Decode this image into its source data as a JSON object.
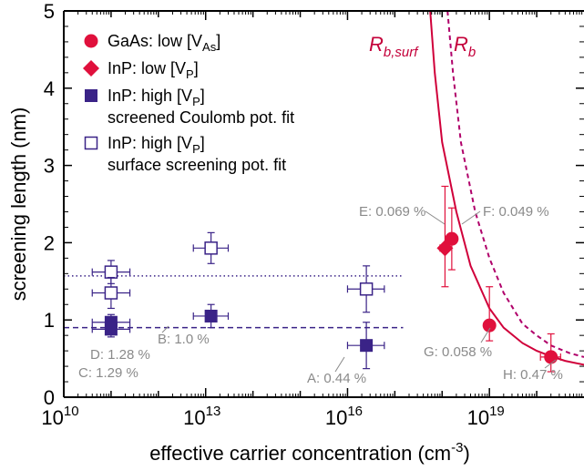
{
  "chart_data": {
    "type": "scatter",
    "xlabel": "effective carrier concentration (cm",
    "xlabel_sup": "-3",
    "xlabel_tail": ")",
    "ylabel": "screening length (nm)",
    "x_scale": "log",
    "xlim": [
      10000000000.0,
      1e+21
    ],
    "ylim": [
      0,
      5
    ],
    "x_ticks": [
      {
        "base": "10",
        "exp": "10",
        "value": 10000000000.0
      },
      {
        "base": "10",
        "exp": "13",
        "value": 10000000000000.0
      },
      {
        "base": "10",
        "exp": "16",
        "value": 1e+16
      },
      {
        "base": "10",
        "exp": "19",
        "value": 1e+19
      }
    ],
    "y_ticks": [
      "0",
      "1",
      "2",
      "3",
      "4",
      "5"
    ],
    "colors": {
      "red": "#e0103c",
      "purple": "#3a2387",
      "curve": "#d0003a",
      "curve_dash": "#b0006a",
      "annotation": "#8a8a8a"
    },
    "legend": [
      {
        "marker": "filled-circle",
        "color": "red",
        "text": "GaAs: low [V",
        "sub": "As",
        "tail": "]",
        "line2": ""
      },
      {
        "marker": "filled-diamond",
        "color": "red",
        "text": "InP: low [V",
        "sub": "P",
        "tail": "]",
        "line2": ""
      },
      {
        "marker": "filled-square",
        "color": "purple",
        "text": "InP: high [V",
        "sub": "P",
        "tail": "]",
        "line2": "screened Coulomb pot. fit"
      },
      {
        "marker": "open-square",
        "color": "purple",
        "text": "InP: high [V",
        "sub": "P",
        "tail": "]",
        "line2": "surface screening pot. fit"
      }
    ],
    "series": [
      {
        "marker": "filled-circle",
        "color": "red",
        "points": [
          {
            "x": 1.6e+18,
            "y": 2.05,
            "xerr": [
              1.3e+18,
              1.9e+18
            ],
            "yerr": [
              1.65,
              2.45
            ]
          },
          {
            "x": 1e+19,
            "y": 0.93,
            "xerr": [
              8e+18,
              1.2e+19
            ],
            "yerr": [
              0.73,
              1.43
            ]
          },
          {
            "x": 2e+20,
            "y": 0.52,
            "xerr": [
              1.2e+20,
              3.2e+20
            ],
            "yerr": [
              0.33,
              0.82
            ]
          }
        ]
      },
      {
        "marker": "filled-diamond",
        "color": "red",
        "points": [
          {
            "x": 1.15e+18,
            "y": 1.93,
            "xerr": [
              9e+17,
              1.4e+18
            ],
            "yerr": [
              1.43,
              2.73
            ]
          }
        ]
      },
      {
        "marker": "filled-square",
        "color": "purple",
        "points": [
          {
            "x": 100000000000.0,
            "y": 0.97,
            "xerr": [
              40000000000.0,
              250000000000.0
            ],
            "yerr": [
              0.87,
              1.07
            ]
          },
          {
            "x": 100000000000.0,
            "y": 0.88,
            "xerr": [
              40000000000.0,
              250000000000.0
            ],
            "yerr": [
              0.78,
              0.98
            ]
          },
          {
            "x": 13000000000000.0,
            "y": 1.05,
            "xerr": [
              5500000000000.0,
              30000000000000.0
            ],
            "yerr": [
              0.9,
              1.2
            ]
          },
          {
            "x": 2.5e+16,
            "y": 0.67,
            "xerr": [
              1e+16,
              6e+16
            ],
            "yerr": [
              0.37,
              0.97
            ]
          }
        ]
      },
      {
        "marker": "open-square",
        "color": "purple",
        "points": [
          {
            "x": 100000000000.0,
            "y": 1.62,
            "xerr": [
              40000000000.0,
              250000000000.0
            ],
            "yerr": [
              1.47,
              1.77
            ]
          },
          {
            "x": 100000000000.0,
            "y": 1.35,
            "xerr": [
              40000000000.0,
              250000000000.0
            ],
            "yerr": [
              1.15,
              1.55
            ]
          },
          {
            "x": 13000000000000.0,
            "y": 1.93,
            "xerr": [
              5500000000000.0,
              30000000000000.0
            ],
            "yerr": [
              1.73,
              2.13
            ]
          },
          {
            "x": 2.5e+16,
            "y": 1.4,
            "xerr": [
              1e+16,
              6e+16
            ],
            "yerr": [
              1.1,
              1.7
            ]
          }
        ]
      }
    ],
    "reference_lines": [
      {
        "style": "dotted",
        "y": 1.57,
        "x_from": 10000000000.0,
        "x_to": 1.5e+17,
        "color": "purple"
      },
      {
        "style": "dashed",
        "y": 0.9,
        "x_from": 10000000000.0,
        "x_to": 1.5e+17,
        "color": "purple"
      }
    ],
    "curves": [
      {
        "name": "R",
        "sub": "b,surf",
        "style": "solid",
        "color": "curve",
        "points": [
          [
            5.6e+17,
            5.0
          ],
          [
            7e+17,
            4.2
          ],
          [
            1e+18,
            3.3
          ],
          [
            2e+18,
            2.4
          ],
          [
            4e+18,
            1.7
          ],
          [
            1e+19,
            1.15
          ],
          [
            2e+19,
            0.9
          ],
          [
            5e+19,
            0.7
          ],
          [
            1e+20,
            0.6
          ],
          [
            2e+20,
            0.53
          ],
          [
            4e+20,
            0.47
          ],
          [
            1e+21,
            0.42
          ]
        ]
      },
      {
        "name": "R",
        "sub": "b",
        "style": "dashed",
        "color": "curve_dash",
        "points": [
          [
            1.3e+18,
            5.0
          ],
          [
            1.7e+18,
            4.2
          ],
          [
            2.5e+18,
            3.3
          ],
          [
            5e+18,
            2.4
          ],
          [
            1e+19,
            1.8
          ],
          [
            2e+19,
            1.35
          ],
          [
            5e+19,
            0.95
          ],
          [
            1e+20,
            0.8
          ],
          [
            2e+20,
            0.67
          ],
          [
            5e+20,
            0.57
          ],
          [
            1e+21,
            0.52
          ]
        ]
      }
    ],
    "annotations": [
      {
        "text": "E: 0.069 %"
      },
      {
        "text": "F: 0.049 %"
      },
      {
        "text": "G: 0.058 %"
      },
      {
        "text": "H: 0.47 %"
      },
      {
        "text": "D: 1.28 %"
      },
      {
        "text": "C: 1.29 %"
      },
      {
        "text": "B: 1.0 %"
      },
      {
        "text": "A: 0.44 %"
      }
    ]
  }
}
